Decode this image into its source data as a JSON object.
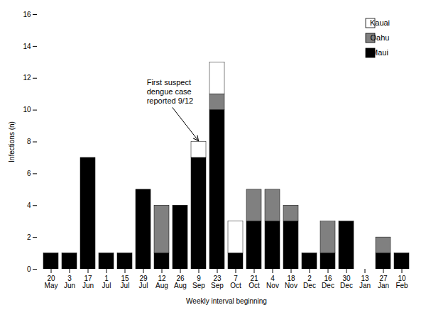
{
  "chart_data": {
    "type": "bar",
    "stacked": true,
    "xlabel": "Weekly interval beginning",
    "ylabel": "Infections (n)",
    "categories": [
      "20\nMay",
      "3\nJun",
      "17\nJun",
      "1\nJul",
      "15\nJul",
      "29\nJul",
      "12\nAug",
      "26\nAug",
      "9\nSep",
      "23\nSep",
      "7\nOct",
      "21\nOct",
      "4\nNov",
      "18\nNov",
      "2\nDec",
      "16\nDec",
      "30\nDec",
      "13\nJan",
      "27\nJan",
      "10\nFeb"
    ],
    "series": [
      {
        "name": "Maui",
        "color": "#000000",
        "values": [
          1,
          1,
          7,
          1,
          1,
          5,
          1,
          4,
          7,
          10,
          1,
          3,
          3,
          3,
          1,
          1,
          3,
          0,
          1,
          1
        ]
      },
      {
        "name": "Oahu",
        "color": "#808080",
        "values": [
          0,
          0,
          0,
          0,
          0,
          0,
          3,
          0,
          0,
          1,
          0,
          2,
          2,
          1,
          0,
          2,
          0,
          0,
          1,
          0
        ]
      },
      {
        "name": "Kauai",
        "color": "#ffffff",
        "values": [
          0,
          0,
          0,
          0,
          0,
          0,
          0,
          0,
          1,
          2,
          2,
          0,
          0,
          0,
          0,
          0,
          0,
          0,
          0,
          0
        ]
      }
    ],
    "ylim": [
      0,
      16
    ],
    "yticks": [
      0,
      2,
      4,
      6,
      8,
      10,
      12,
      14,
      16
    ],
    "legend": "upper right",
    "annotations": [
      {
        "text": "First suspect\ndengue case\nreported 9/12",
        "x": "9\nSep",
        "y": 8
      }
    ]
  }
}
